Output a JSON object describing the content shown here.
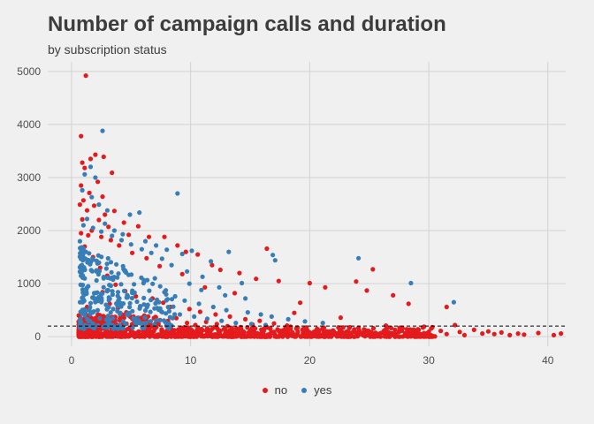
{
  "chart_data": {
    "type": "scatter",
    "title": "Number of campaign calls and duration",
    "subtitle": "by subscription status",
    "xlabel": "",
    "ylabel": "",
    "xlim": [
      -2,
      41.5
    ],
    "ylim": [
      -180,
      5180
    ],
    "x_ticks": [
      0,
      10,
      20,
      30,
      40
    ],
    "y_ticks": [
      0,
      1000,
      2000,
      3000,
      4000,
      5000
    ],
    "grid": true,
    "reference_line": {
      "y": 200,
      "style": "dashed",
      "color": "#000000"
    },
    "legend": {
      "placement": "bottom"
    },
    "series": [
      {
        "name": "no",
        "color": "#e41a1c",
        "points": [
          [
            1.2,
            4920
          ],
          [
            0.8,
            3780
          ],
          [
            1.6,
            3350
          ],
          [
            2.0,
            3430
          ],
          [
            0.9,
            3280
          ],
          [
            2.7,
            3390
          ],
          [
            3.4,
            3090
          ],
          [
            1.1,
            3180
          ],
          [
            2.2,
            2920
          ],
          [
            0.8,
            2850
          ],
          [
            1.5,
            2710
          ],
          [
            2.6,
            2640
          ],
          [
            1.0,
            2570
          ],
          [
            0.7,
            2490
          ],
          [
            3.6,
            2370
          ],
          [
            1.9,
            2470
          ],
          [
            2.8,
            2300
          ],
          [
            1.3,
            2380
          ],
          [
            4.4,
            2150
          ],
          [
            2.3,
            2200
          ],
          [
            0.9,
            2210
          ],
          [
            5.6,
            2080
          ],
          [
            3.1,
            2070
          ],
          [
            1.7,
            2000
          ],
          [
            6.5,
            1880
          ],
          [
            4.8,
            1920
          ],
          [
            7.8,
            1880
          ],
          [
            8.9,
            1720
          ],
          [
            9.6,
            1600
          ],
          [
            10.6,
            1550
          ],
          [
            11.8,
            1350
          ],
          [
            12.5,
            1260
          ],
          [
            16.4,
            1660
          ],
          [
            14.1,
            1200
          ],
          [
            15.5,
            1090
          ],
          [
            17.4,
            1050
          ],
          [
            20.0,
            1010
          ],
          [
            21.3,
            930
          ],
          [
            25.3,
            1270
          ],
          [
            23.9,
            1040
          ],
          [
            24.8,
            870
          ],
          [
            27.0,
            780
          ],
          [
            28.3,
            620
          ],
          [
            31.5,
            560
          ],
          [
            32.2,
            220
          ],
          [
            29.6,
            190
          ],
          [
            30.3,
            180
          ],
          [
            33.8,
            130
          ],
          [
            35.0,
            100
          ],
          [
            36.1,
            80
          ],
          [
            37.5,
            60
          ],
          [
            38.0,
            40
          ],
          [
            39.2,
            70
          ],
          [
            40.5,
            30
          ],
          [
            41.1,
            60
          ],
          [
            34.5,
            60
          ],
          [
            22.6,
            360
          ],
          [
            19.2,
            640
          ],
          [
            18.7,
            450
          ],
          [
            13.7,
            820
          ],
          [
            11.2,
            930
          ],
          [
            9.3,
            1180
          ],
          [
            7.4,
            1330
          ],
          [
            6.3,
            1480
          ],
          [
            5.1,
            1580
          ],
          [
            4.0,
            1720
          ],
          [
            3.3,
            1820
          ],
          [
            2.5,
            1880
          ],
          [
            1.4,
            1910
          ],
          [
            0.8,
            1950
          ],
          [
            1.1,
            1700
          ],
          [
            1.8,
            1500
          ],
          [
            2.4,
            1300
          ],
          [
            3.0,
            1150
          ],
          [
            3.7,
            980
          ],
          [
            4.5,
            860
          ],
          [
            5.4,
            760
          ],
          [
            6.8,
            720
          ],
          [
            7.7,
            640
          ],
          [
            8.3,
            560
          ],
          [
            9.9,
            520
          ],
          [
            10.8,
            470
          ],
          [
            12.1,
            420
          ],
          [
            13.3,
            380
          ],
          [
            14.6,
            330
          ],
          [
            15.8,
            300
          ],
          [
            17.0,
            250
          ],
          [
            18.1,
            210
          ],
          [
            19.5,
            150
          ],
          [
            20.8,
            120
          ],
          [
            22.0,
            100
          ],
          [
            23.3,
            80
          ],
          [
            24.6,
            70
          ],
          [
            25.9,
            60
          ],
          [
            27.2,
            50
          ],
          [
            28.6,
            40
          ],
          [
            26.4,
            210
          ],
          [
            27.8,
            160
          ],
          [
            31.0,
            110
          ],
          [
            32.6,
            90
          ],
          [
            0.6,
            40
          ],
          [
            1.0,
            80
          ],
          [
            1.5,
            120
          ],
          [
            2.0,
            160
          ],
          [
            2.5,
            60
          ],
          [
            3.0,
            100
          ],
          [
            3.5,
            140
          ],
          [
            4.0,
            40
          ],
          [
            4.5,
            90
          ],
          [
            5.0,
            130
          ],
          [
            5.5,
            50
          ],
          [
            6.0,
            110
          ],
          [
            6.5,
            70
          ],
          [
            7.0,
            150
          ],
          [
            7.5,
            40
          ],
          [
            8.0,
            100
          ],
          [
            8.5,
            60
          ],
          [
            9.0,
            140
          ],
          [
            9.5,
            30
          ],
          [
            10.0,
            90
          ],
          [
            10.5,
            50
          ],
          [
            11.0,
            120
          ],
          [
            11.5,
            70
          ],
          [
            12.0,
            40
          ],
          [
            12.5,
            110
          ],
          [
            13.0,
            60
          ],
          [
            13.5,
            150
          ],
          [
            14.0,
            30
          ],
          [
            14.5,
            80
          ],
          [
            15.0,
            120
          ],
          [
            15.5,
            50
          ],
          [
            16.0,
            90
          ],
          [
            16.5,
            40
          ],
          [
            17.0,
            70
          ],
          [
            17.5,
            110
          ],
          [
            18.0,
            30
          ],
          [
            18.5,
            60
          ],
          [
            19.0,
            100
          ],
          [
            19.5,
            40
          ],
          [
            20.0,
            80
          ],
          [
            20.5,
            50
          ],
          [
            21.0,
            30
          ],
          [
            21.5,
            70
          ],
          [
            22.0,
            40
          ],
          [
            22.5,
            90
          ],
          [
            23.0,
            30
          ],
          [
            23.5,
            60
          ],
          [
            24.0,
            40
          ],
          [
            24.5,
            80
          ],
          [
            25.0,
            30
          ],
          [
            25.5,
            50
          ],
          [
            26.0,
            70
          ],
          [
            27.5,
            90
          ],
          [
            28.0,
            30
          ],
          [
            29.0,
            60
          ],
          [
            30.0,
            40
          ],
          [
            31.5,
            50
          ],
          [
            33.0,
            30
          ],
          [
            35.5,
            50
          ],
          [
            36.8,
            30
          ],
          [
            1.3,
            560
          ],
          [
            1.9,
            720
          ],
          [
            2.6,
            840
          ],
          [
            3.2,
            620
          ],
          [
            3.9,
            540
          ],
          [
            4.6,
            460
          ],
          [
            5.2,
            380
          ],
          [
            5.9,
            320
          ],
          [
            6.6,
            280
          ],
          [
            7.3,
            240
          ],
          [
            8.1,
            300
          ],
          [
            8.8,
            350
          ],
          [
            9.7,
            260
          ],
          [
            10.4,
            220
          ],
          [
            11.3,
            280
          ],
          [
            12.2,
            240
          ],
          [
            13.1,
            200
          ],
          [
            14.2,
            180
          ],
          [
            15.2,
            230
          ],
          [
            16.2,
            160
          ],
          [
            17.3,
            140
          ],
          [
            18.4,
            190
          ],
          [
            19.8,
            120
          ],
          [
            21.2,
            170
          ]
        ]
      },
      {
        "name": "yes",
        "color": "#377eb8",
        "points": [
          [
            2.6,
            3880
          ],
          [
            1.6,
            3200
          ],
          [
            1.1,
            3060
          ],
          [
            2.0,
            3000
          ],
          [
            0.9,
            2760
          ],
          [
            1.7,
            2630
          ],
          [
            2.3,
            2490
          ],
          [
            3.0,
            2380
          ],
          [
            4.9,
            2300
          ],
          [
            5.7,
            2340
          ],
          [
            8.9,
            2700
          ],
          [
            1.3,
            2220
          ],
          [
            2.8,
            2130
          ],
          [
            3.6,
            2000
          ],
          [
            4.3,
            1930
          ],
          [
            6.2,
            1800
          ],
          [
            7.1,
            1720
          ],
          [
            8.0,
            1640
          ],
          [
            9.3,
            1560
          ],
          [
            10.1,
            1620
          ],
          [
            11.7,
            1420
          ],
          [
            13.2,
            1600
          ],
          [
            16.9,
            1540
          ],
          [
            17.1,
            1440
          ],
          [
            24.1,
            1480
          ],
          [
            28.5,
            1010
          ],
          [
            32.1,
            650
          ],
          [
            21.1,
            260
          ],
          [
            14.3,
            1010
          ],
          [
            12.4,
            930
          ],
          [
            11.0,
            1130
          ],
          [
            9.7,
            1230
          ],
          [
            8.4,
            1350
          ],
          [
            7.6,
            1470
          ],
          [
            6.7,
            1580
          ],
          [
            5.9,
            1650
          ],
          [
            5.0,
            1740
          ],
          [
            4.2,
            1820
          ],
          [
            3.4,
            1900
          ],
          [
            2.5,
            1980
          ],
          [
            1.8,
            2050
          ],
          [
            1.0,
            2100
          ],
          [
            0.7,
            1800
          ],
          [
            1.2,
            1600
          ],
          [
            1.6,
            1400
          ],
          [
            2.1,
            1250
          ],
          [
            2.7,
            1100
          ],
          [
            3.3,
            960
          ],
          [
            3.9,
            840
          ],
          [
            4.7,
            740
          ],
          [
            5.5,
            660
          ],
          [
            6.4,
            600
          ],
          [
            7.2,
            540
          ],
          [
            8.2,
            480
          ],
          [
            9.1,
            420
          ],
          [
            10.3,
            380
          ],
          [
            11.4,
            340
          ],
          [
            12.6,
            300
          ],
          [
            13.8,
            260
          ],
          [
            15.1,
            240
          ],
          [
            16.3,
            220
          ],
          [
            0.8,
            1300
          ],
          [
            1.1,
            1100
          ],
          [
            1.4,
            950
          ],
          [
            1.9,
            820
          ],
          [
            2.4,
            700
          ],
          [
            2.9,
            600
          ],
          [
            3.5,
            520
          ],
          [
            4.1,
            450
          ],
          [
            4.8,
            400
          ],
          [
            5.6,
            360
          ],
          [
            6.3,
            320
          ],
          [
            1.0,
            700
          ],
          [
            1.5,
            500
          ],
          [
            2.2,
            420
          ],
          [
            2.8,
            360
          ],
          [
            3.7,
            300
          ],
          [
            4.4,
            260
          ],
          [
            5.3,
            240
          ],
          [
            6.1,
            220
          ],
          [
            7.8,
            840
          ],
          [
            8.7,
            760
          ],
          [
            9.5,
            680
          ],
          [
            10.7,
            620
          ],
          [
            11.9,
            560
          ],
          [
            13.0,
            500
          ],
          [
            14.8,
            460
          ],
          [
            15.9,
            420
          ],
          [
            16.8,
            380
          ],
          [
            18.2,
            330
          ],
          [
            19.6,
            290
          ],
          [
            14.6,
            720
          ],
          [
            12.9,
            780
          ],
          [
            10.9,
            880
          ],
          [
            9.9,
            1000
          ],
          [
            7.0,
            1100
          ]
        ]
      }
    ]
  }
}
